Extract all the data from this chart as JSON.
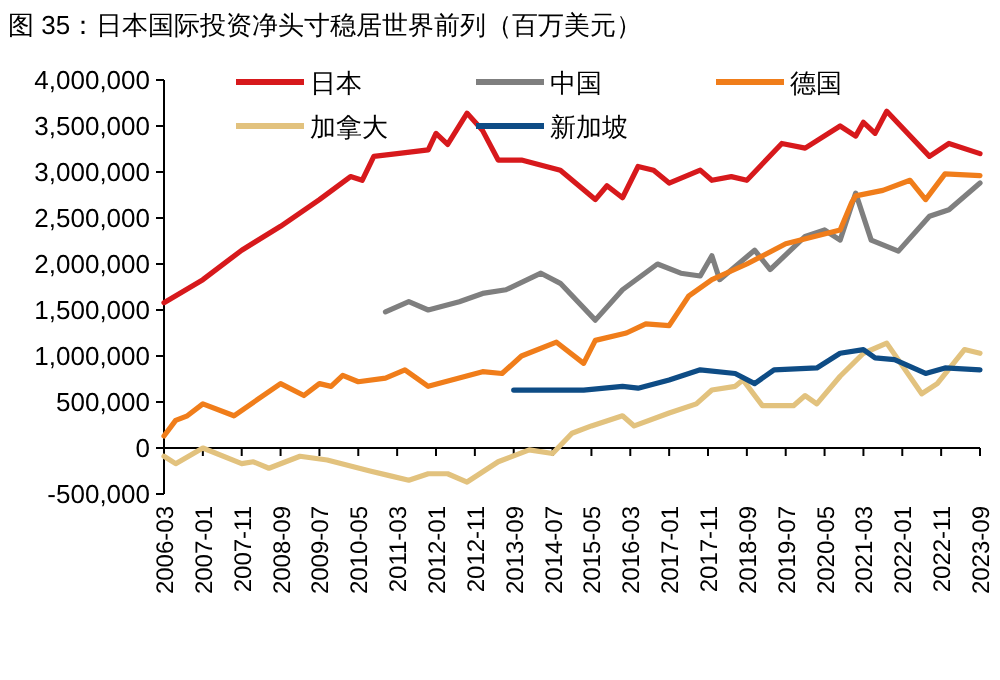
{
  "chart_data": {
    "type": "line",
    "title": "图 35：日本国际投资净头寸稳居世界前列（百万美元）",
    "xlim": [
      "2006-03",
      "2023-09"
    ],
    "xticks": [
      "2006-03",
      "2007-01",
      "2007-11",
      "2008-09",
      "2009-07",
      "2010-05",
      "2011-03",
      "2012-01",
      "2012-11",
      "2013-09",
      "2014-07",
      "2015-05",
      "2016-03",
      "2017-01",
      "2017-11",
      "2018-09",
      "2019-07",
      "2020-05",
      "2021-03",
      "2022-01",
      "2022-11",
      "2023-09"
    ],
    "ylim": [
      -500000,
      4000000
    ],
    "yticks": [
      {
        "value": -500000,
        "label": "-500,000"
      },
      {
        "value": 0,
        "label": "0"
      },
      {
        "value": 500000,
        "label": "500,000"
      },
      {
        "value": 1000000,
        "label": "1,000,000"
      },
      {
        "value": 1500000,
        "label": "1,500,000"
      },
      {
        "value": 2000000,
        "label": "2,000,000"
      },
      {
        "value": 2500000,
        "label": "2,500,000"
      },
      {
        "value": 3000000,
        "label": "3,000,000"
      },
      {
        "value": 3500000,
        "label": "3,500,000"
      },
      {
        "value": 4000000,
        "label": "4,000,000"
      }
    ],
    "grid": false,
    "legend": "top",
    "marker": "none",
    "line_style": "solid",
    "series": [
      {
        "name": "日本",
        "color": "#d7191c",
        "x": [
          "2006-03",
          "2007-01",
          "2007-11",
          "2008-09",
          "2009-07",
          "2010-03",
          "2010-06",
          "2010-09",
          "2011-03",
          "2011-11",
          "2012-01",
          "2012-04",
          "2012-09",
          "2013-01",
          "2013-05",
          "2013-11",
          "2014-09",
          "2015-06",
          "2015-09",
          "2016-01",
          "2016-05",
          "2016-09",
          "2017-01",
          "2017-09",
          "2017-12",
          "2018-05",
          "2018-09",
          "2019-06",
          "2019-12",
          "2020-09",
          "2021-01",
          "2021-03",
          "2021-06",
          "2021-09",
          "2022-08",
          "2023-01",
          "2023-09"
        ],
        "values": [
          1580000,
          1830000,
          2150000,
          2410000,
          2700000,
          2950000,
          2910000,
          3170000,
          3200000,
          3240000,
          3420000,
          3300000,
          3640000,
          3450000,
          3130000,
          3130000,
          3020000,
          2700000,
          2850000,
          2720000,
          3060000,
          3020000,
          2880000,
          3020000,
          2910000,
          2950000,
          2910000,
          3310000,
          3260000,
          3500000,
          3390000,
          3540000,
          3420000,
          3660000,
          3170000,
          3310000,
          3200000
        ]
      },
      {
        "name": "中国",
        "color": "#7f7f7f",
        "x": [
          "2010-12",
          "2011-06",
          "2011-11",
          "2012-07",
          "2013-01",
          "2013-07",
          "2014-04",
          "2014-09",
          "2015-06",
          "2016-01",
          "2016-10",
          "2017-04",
          "2017-09",
          "2017-12",
          "2018-02",
          "2018-11",
          "2019-03",
          "2019-12",
          "2020-05",
          "2020-09",
          "2021-01",
          "2021-05",
          "2021-12",
          "2022-08",
          "2023-01",
          "2023-09"
        ],
        "values": [
          1480000,
          1590000,
          1500000,
          1590000,
          1680000,
          1720000,
          1900000,
          1790000,
          1390000,
          1720000,
          2000000,
          1900000,
          1870000,
          2090000,
          1830000,
          2150000,
          1940000,
          2300000,
          2370000,
          2260000,
          2770000,
          2260000,
          2140000,
          2520000,
          2590000,
          2880000
        ]
      },
      {
        "name": "德国",
        "color": "#f07d1a",
        "x": [
          "2006-03",
          "2006-06",
          "2006-09",
          "2007-01",
          "2007-09",
          "2008-09",
          "2009-03",
          "2009-07",
          "2009-10",
          "2010-01",
          "2010-05",
          "2010-12",
          "2011-05",
          "2011-11",
          "2013-01",
          "2013-06",
          "2013-11",
          "2014-08",
          "2015-03",
          "2015-06",
          "2016-02",
          "2016-07",
          "2017-01",
          "2017-06",
          "2017-12",
          "2018-09",
          "2019-07",
          "2020-09",
          "2020-12",
          "2021-01",
          "2021-08",
          "2022-03",
          "2022-07",
          "2022-12",
          "2023-09"
        ],
        "values": [
          130000,
          300000,
          350000,
          480000,
          350000,
          700000,
          570000,
          700000,
          670000,
          790000,
          720000,
          760000,
          850000,
          670000,
          830000,
          810000,
          1000000,
          1150000,
          920000,
          1170000,
          1250000,
          1350000,
          1330000,
          1650000,
          1830000,
          2000000,
          2220000,
          2370000,
          2670000,
          2740000,
          2800000,
          2910000,
          2700000,
          2980000,
          2960000
        ]
      },
      {
        "name": "加拿大",
        "color": "#e2c27e",
        "x": [
          "2006-03",
          "2006-06",
          "2007-01",
          "2007-11",
          "2008-02",
          "2008-06",
          "2009-02",
          "2009-09",
          "2010-08",
          "2011-01",
          "2011-06",
          "2011-11",
          "2012-04",
          "2012-09",
          "2013-05",
          "2014-01",
          "2014-07",
          "2014-12",
          "2015-05",
          "2016-01",
          "2016-04",
          "2017-01",
          "2017-08",
          "2017-12",
          "2018-06",
          "2018-08",
          "2019-01",
          "2019-09",
          "2019-12",
          "2020-03",
          "2020-09",
          "2021-03",
          "2021-09",
          "2022-06",
          "2022-10",
          "2023-05",
          "2023-09"
        ],
        "values": [
          -90000,
          -170000,
          0,
          -170000,
          -150000,
          -220000,
          -90000,
          -130000,
          -250000,
          -300000,
          -350000,
          -280000,
          -280000,
          -370000,
          -150000,
          -20000,
          -60000,
          160000,
          240000,
          350000,
          240000,
          380000,
          480000,
          630000,
          670000,
          740000,
          460000,
          460000,
          570000,
          480000,
          780000,
          1030000,
          1140000,
          590000,
          700000,
          1070000,
          1030000
        ]
      },
      {
        "name": "新加坡",
        "color": "#0e4c85",
        "x": [
          "2013-09",
          "2014-05",
          "2015-03",
          "2016-01",
          "2016-05",
          "2017-01",
          "2017-09",
          "2018-06",
          "2018-11",
          "2019-04",
          "2020-03",
          "2020-09",
          "2021-03",
          "2021-06",
          "2021-11",
          "2022-07",
          "2022-12",
          "2023-09"
        ],
        "values": [
          630000,
          630000,
          630000,
          670000,
          650000,
          740000,
          850000,
          810000,
          700000,
          850000,
          870000,
          1030000,
          1070000,
          980000,
          960000,
          810000,
          870000,
          850000
        ]
      }
    ]
  }
}
